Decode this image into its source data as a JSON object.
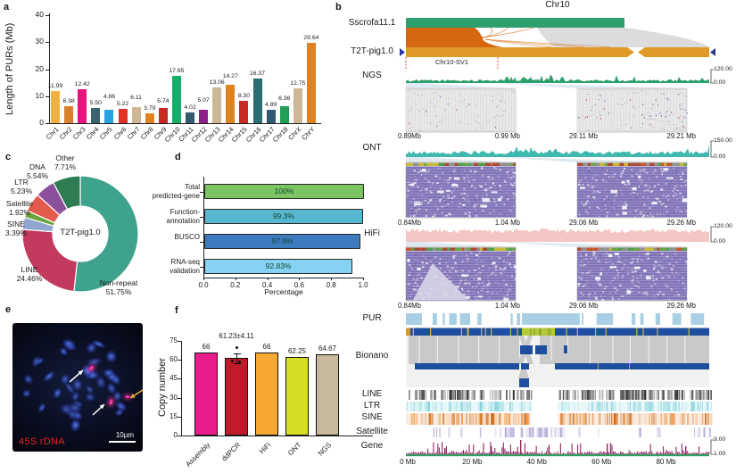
{
  "panel_labels": {
    "a": "a",
    "b": "b",
    "c": "c",
    "d": "d",
    "e": "e",
    "f": "f"
  },
  "chart_data": [
    {
      "id": "purs-per-chromosome",
      "type": "bar",
      "ylabel": "Length of PURs (Mb)",
      "ylim": [
        0,
        40
      ],
      "yticks": [
        0,
        10,
        20,
        30,
        40
      ],
      "categories": [
        "Chr1",
        "Chr2",
        "Chr3",
        "Chr4",
        "Chr5",
        "Chr6",
        "Chr7",
        "Chr8",
        "Chr9",
        "Chr10",
        "Chr11",
        "Chr12",
        "Chr13",
        "Chr14",
        "Chr15",
        "Chr16",
        "Chr17",
        "Chr18",
        "ChrX",
        "ChrY"
      ],
      "values": [
        11.99,
        6.38,
        12.42,
        5.5,
        4.86,
        5.22,
        6.11,
        3.79,
        5.74,
        17.65,
        4.02,
        5.07,
        13.06,
        14.27,
        8.3,
        16.37,
        4.89,
        6.36,
        12.75,
        29.64
      ],
      "bar_labels": [
        "11.99",
        "6.38",
        "12.42",
        "5.50",
        "4.86",
        "5.22",
        "6.11",
        "3.79",
        "5.74",
        "17.65",
        "4.02",
        "5.07",
        "13.06",
        "14.27",
        "8.30",
        "16.37",
        "4.89",
        "6.36",
        "12.75",
        "29.64"
      ],
      "bar_colors": [
        "#f0b23e",
        "#d8802c",
        "#e8127e",
        "#3a6570",
        "#29a3e0",
        "#e23228",
        "#cdb795",
        "#e0821f",
        "#c92a23",
        "#17ad6b",
        "#33596e",
        "#8e2189",
        "#cdb795",
        "#e0821f",
        "#c92a23",
        "#2a6e72",
        "#2e5a74",
        "#1f9e54",
        "#cdb795",
        "#e0821f"
      ]
    },
    {
      "id": "repeat-composition",
      "type": "pie",
      "center_label": "T2T-pig1.0",
      "slices": [
        {
          "label": "Non-repeat",
          "value": 51.75,
          "color": "#3fa28c"
        },
        {
          "label": "LINE",
          "value": 24.46,
          "color": "#c23a5e"
        },
        {
          "label": "SINE",
          "value": 3.39,
          "color": "#8ea6d0"
        },
        {
          "label": "Satellite",
          "value": 1.92,
          "color": "#6aa33c"
        },
        {
          "label": "LTR",
          "value": 5.23,
          "color": "#e25b4d"
        },
        {
          "label": "DNA",
          "value": 5.54,
          "color": "#8c4f9b"
        },
        {
          "label": "Other",
          "value": 7.71,
          "color": "#2e7d52"
        }
      ]
    },
    {
      "id": "annotation-stats",
      "type": "bar",
      "orientation": "horizontal",
      "xlabel": "Percentage",
      "xlim": [
        0,
        1
      ],
      "xticks": [
        "0.0",
        "0.2",
        "0.4",
        "0.6",
        "0.8",
        "1.0"
      ],
      "categories": [
        "Total\npredicted-gene",
        "Function-\nannotation",
        "BUSCO",
        "RNA-seq\nvalidation"
      ],
      "values": [
        1.0,
        0.993,
        0.979,
        0.9283
      ],
      "bar_labels": [
        "100%",
        "99.3%",
        "97.9%",
        "92.83%"
      ],
      "bar_colors": [
        "#7cc462",
        "#57b7cf",
        "#3d7bbf",
        "#86d2f2"
      ]
    },
    {
      "id": "rdna-copy-number",
      "type": "bar",
      "ylabel": "Copy number",
      "ylim": [
        0,
        75
      ],
      "yticks": [
        0,
        15,
        30,
        45,
        60,
        75
      ],
      "categories": [
        "Assembly",
        "ddPCR",
        "HiFi",
        "ONT",
        "NGS"
      ],
      "values": [
        66,
        61.23,
        66,
        62.25,
        64.67
      ],
      "bar_labels": [
        "66",
        "61.23±4.11",
        "66",
        "62.25",
        "64.67"
      ],
      "errors": [
        null,
        4.11,
        null,
        null,
        null
      ],
      "bar_colors": [
        "#ea1c8b",
        "#c11a2b",
        "#f5a832",
        "#d6de23",
        "#c6ba9b"
      ]
    }
  ],
  "genome_browser": {
    "title": "Chr10",
    "sv_label": "Chr10-SV1",
    "ref_label": "Sscrofa11.1",
    "t2t_label": "T2T-pig1.0",
    "coverage_tracks": [
      {
        "label": "NGS",
        "color": "#2d9f6d",
        "scale_max": "120.00",
        "scale_min": "0.00",
        "pileup": "short-read",
        "windows": [
          {
            "start": "0.89Mb",
            "end": "0.99 Mb"
          },
          {
            "start": "29.11 Mb",
            "end": "29.21 Mb"
          }
        ]
      },
      {
        "label": "ONT",
        "color": "#3fb8b0",
        "scale_max": "150.00",
        "scale_min": "0.00",
        "pileup": "long-read",
        "windows": [
          {
            "start": "0.84Mb",
            "end": "1.04 Mb"
          },
          {
            "start": "29.06 Mb",
            "end": "29.26 Mb"
          }
        ]
      },
      {
        "label": "HiFi",
        "color": "#f5c5c3",
        "scale_max": "120.00",
        "scale_min": "0.00",
        "pileup": "long-read",
        "windows": [
          {
            "start": "0.84Mb",
            "end": "1.04 Mb"
          },
          {
            "start": "29.06 Mb",
            "end": "29.26 Mb"
          }
        ]
      }
    ],
    "region_tracks": [
      {
        "label": "PUR",
        "color": "#a9cfe5"
      },
      {
        "label": "Bionano",
        "color": "#1d4f9e"
      },
      {
        "label": "LINE",
        "color": "#2f2f2f"
      },
      {
        "label": "LTR",
        "color": "#7fd0d8"
      },
      {
        "label": "SINE",
        "color": "#e07c2a"
      },
      {
        "label": "Satellite",
        "color": "#b3a8d6"
      },
      {
        "label": "Gene",
        "color": "#8e2660",
        "scale_max": "9.00",
        "scale_min": "1.00"
      }
    ],
    "x_ticks": [
      "0 Mb",
      "20 Mb",
      "40 Mb",
      "60 Mb",
      "80 Mb"
    ]
  },
  "microscopy": {
    "label": "45S rDNA",
    "scale_bar": "10µm"
  }
}
